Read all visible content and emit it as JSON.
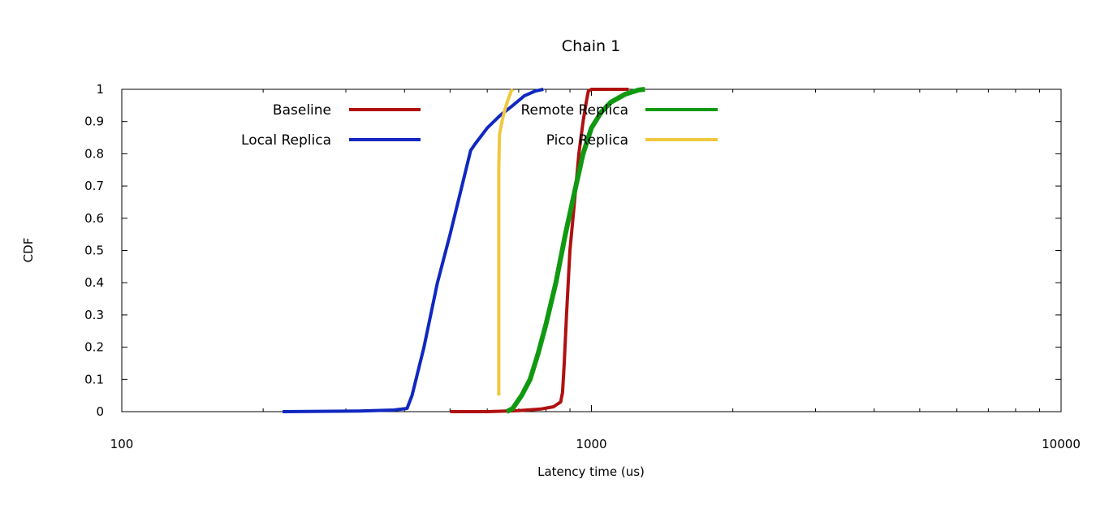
{
  "chart_data": {
    "type": "line",
    "title": "Chain 1",
    "xlabel": "Latency time (us)",
    "ylabel": "CDF",
    "x_scale": "log",
    "xlim": [
      100,
      10000
    ],
    "ylim": [
      0,
      1
    ],
    "x_ticks": [
      "100",
      "1000",
      "10000"
    ],
    "y_ticks": [
      "0",
      "0.1",
      "0.2",
      "0.3",
      "0.4",
      "0.5",
      "0.6",
      "0.7",
      "0.8",
      "0.9",
      "1"
    ],
    "grid": false,
    "legend_placement": "top, inside plot area, two columns",
    "series": [
      {
        "name": "Baseline",
        "color": "#b01010",
        "points": [
          [
            500,
            0
          ],
          [
            600,
            0
          ],
          [
            700,
            0.003
          ],
          [
            780,
            0.008
          ],
          [
            830,
            0.015
          ],
          [
            860,
            0.03
          ],
          [
            868,
            0.06
          ],
          [
            875,
            0.15
          ],
          [
            885,
            0.3
          ],
          [
            900,
            0.5
          ],
          [
            920,
            0.65
          ],
          [
            940,
            0.8
          ],
          [
            960,
            0.9
          ],
          [
            975,
            0.96
          ],
          [
            985,
            0.995
          ],
          [
            1000,
            1
          ],
          [
            1100,
            1
          ],
          [
            1200,
            1
          ]
        ]
      },
      {
        "name": "Local Replica",
        "color": "#1028c0",
        "points": [
          [
            220,
            0
          ],
          [
            320,
            0.002
          ],
          [
            380,
            0.005
          ],
          [
            405,
            0.01
          ],
          [
            415,
            0.05
          ],
          [
            440,
            0.2
          ],
          [
            470,
            0.4
          ],
          [
            500,
            0.55
          ],
          [
            530,
            0.7
          ],
          [
            553,
            0.81
          ],
          [
            565,
            0.83
          ],
          [
            600,
            0.88
          ],
          [
            640,
            0.92
          ],
          [
            680,
            0.95
          ],
          [
            720,
            0.98
          ],
          [
            760,
            0.995
          ],
          [
            790,
            1
          ]
        ]
      },
      {
        "name": "Remote Replica",
        "color": "#109910",
        "points": [
          [
            660,
            0
          ],
          [
            680,
            0.01
          ],
          [
            710,
            0.05
          ],
          [
            740,
            0.1
          ],
          [
            770,
            0.18
          ],
          [
            800,
            0.27
          ],
          [
            840,
            0.4
          ],
          [
            880,
            0.55
          ],
          [
            920,
            0.68
          ],
          [
            960,
            0.8
          ],
          [
            1000,
            0.88
          ],
          [
            1050,
            0.93
          ],
          [
            1100,
            0.96
          ],
          [
            1180,
            0.985
          ],
          [
            1260,
            0.998
          ],
          [
            1300,
            1
          ]
        ]
      },
      {
        "name": "Pico Replica",
        "color": "#f0c840",
        "points": [
          [
            635,
            0.05
          ],
          [
            635,
            0.3
          ],
          [
            635,
            0.6
          ],
          [
            635,
            0.75
          ],
          [
            637,
            0.86
          ],
          [
            645,
            0.9
          ],
          [
            655,
            0.94
          ],
          [
            665,
            0.97
          ],
          [
            675,
            0.995
          ],
          [
            680,
            1
          ]
        ]
      }
    ]
  }
}
